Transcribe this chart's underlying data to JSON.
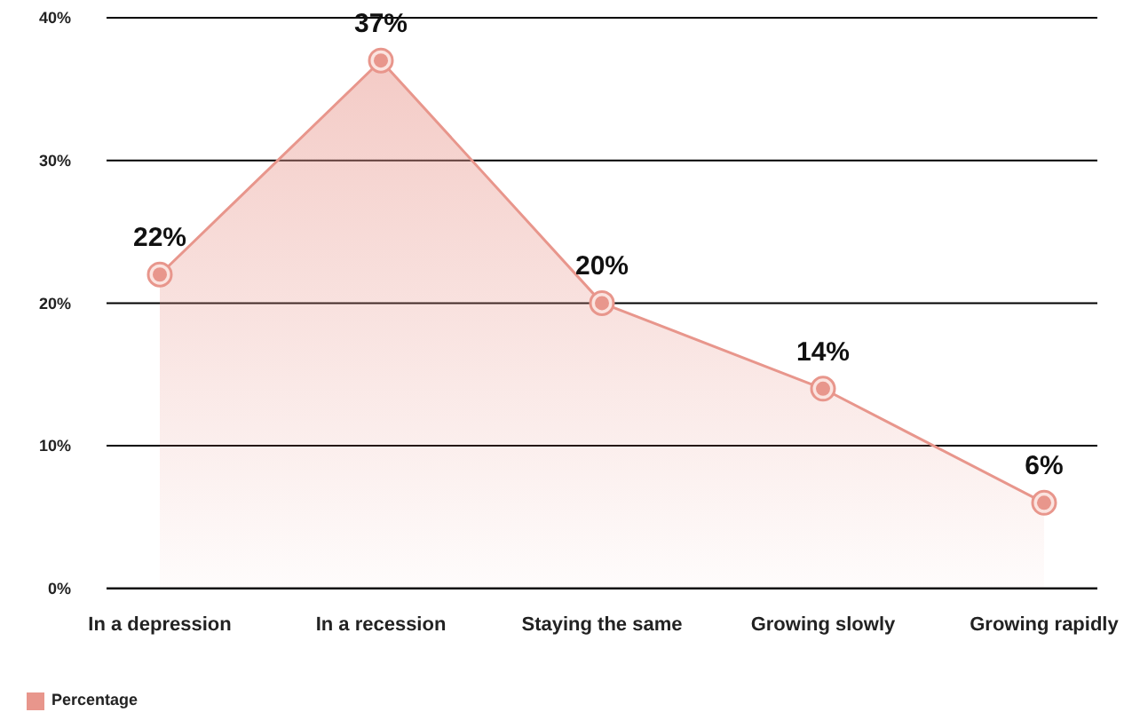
{
  "chart_data": {
    "type": "area",
    "categories": [
      "In a depression",
      "In a recession",
      "Staying the same",
      "Growing slowly",
      "Growing rapidly"
    ],
    "series": [
      {
        "name": "Percentage",
        "color": "#e8968c",
        "values": [
          22,
          37,
          20,
          14,
          6
        ],
        "value_labels": [
          "22%",
          "37%",
          "20%",
          "14%",
          "6%"
        ]
      }
    ],
    "ylim": [
      0,
      40
    ],
    "yticks": [
      {
        "value": 0,
        "label": "0%"
      },
      {
        "value": 10,
        "label": "10%"
      },
      {
        "value": 20,
        "label": "20%"
      },
      {
        "value": 30,
        "label": "30%"
      },
      {
        "value": 40,
        "label": "40%"
      }
    ],
    "grid": "y",
    "legend": "bottom left",
    "marker": "circle"
  }
}
